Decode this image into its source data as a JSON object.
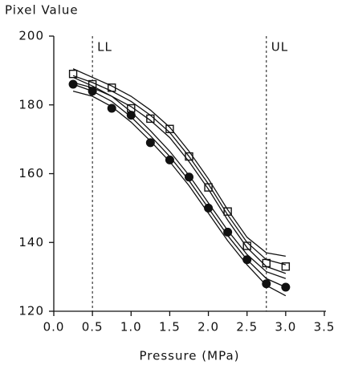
{
  "chart_data": {
    "type": "scatter",
    "y_label": "Pixel Value",
    "x_label": "Pressure (MPa)",
    "xlim": [
      0,
      3.5
    ],
    "ylim": [
      120,
      200
    ],
    "xticks": [
      {
        "value": 0,
        "label": "0.0"
      },
      {
        "value": 0.5,
        "label": "0.5"
      },
      {
        "value": 1,
        "label": "1.0"
      },
      {
        "value": 1.5,
        "label": "1.5"
      },
      {
        "value": 2,
        "label": "2.0"
      },
      {
        "value": 2.5,
        "label": "2.5"
      },
      {
        "value": 3,
        "label": "3.0"
      },
      {
        "value": 3.5,
        "label": "3.5"
      }
    ],
    "yticks": [
      120,
      140,
      160,
      180,
      200
    ],
    "reference_lines": [
      {
        "x": 0.5,
        "label": "LL"
      },
      {
        "x": 2.75,
        "label": "UL"
      }
    ],
    "x": [
      0.25,
      0.5,
      0.75,
      1.0,
      1.25,
      1.5,
      1.75,
      2.0,
      2.25,
      2.5,
      2.75,
      3.0
    ],
    "series": [
      {
        "marker": "square",
        "color": "#111111",
        "values": [
          189,
          186,
          185,
          179,
          176,
          173,
          165,
          156,
          149,
          139,
          134,
          133
        ]
      },
      {
        "marker": "circle",
        "color": "#111111",
        "values": [
          186,
          184,
          179,
          177,
          169,
          164,
          159,
          150,
          143,
          135,
          128,
          127
        ]
      },
      {
        "marker": "none",
        "color": "#111111",
        "values": [
          188.5,
          186.5,
          184,
          181,
          177,
          172,
          165,
          157,
          148,
          140,
          135,
          133.5
        ]
      },
      {
        "marker": "none",
        "color": "#111111",
        "values": [
          190.5,
          188,
          185.5,
          182.5,
          178.5,
          173.5,
          166.5,
          158.5,
          149.5,
          141.5,
          137,
          136
        ]
      },
      {
        "marker": "none",
        "color": "#111111",
        "values": [
          186.5,
          185,
          182.5,
          179.5,
          175.5,
          170.5,
          163.5,
          155.5,
          146.5,
          138.5,
          133,
          131
        ]
      },
      {
        "marker": "none",
        "color": "#111111",
        "values": [
          186,
          184,
          181,
          176.5,
          171,
          165,
          158,
          150,
          142,
          135,
          129.5,
          127
        ]
      },
      {
        "marker": "none",
        "color": "#111111",
        "values": [
          188,
          185.5,
          182.5,
          178,
          172.5,
          166.5,
          159.5,
          151.5,
          143.5,
          136.5,
          131.5,
          129.5
        ]
      },
      {
        "marker": "none",
        "color": "#111111",
        "values": [
          184,
          182.5,
          179.5,
          175,
          169.5,
          163.5,
          156.5,
          148.5,
          140.5,
          133.5,
          127.5,
          124.5
        ]
      }
    ]
  }
}
